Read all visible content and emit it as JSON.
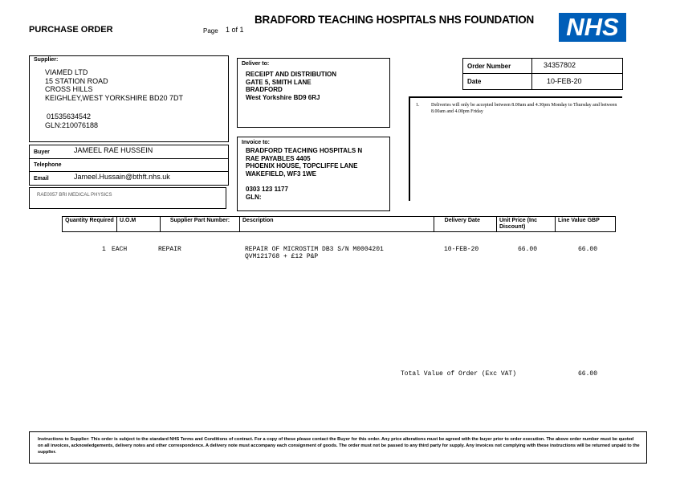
{
  "header": {
    "doc_title": "PURCHASE ORDER",
    "page_label": "Page",
    "page_value": "1 of 1",
    "org_name": "BRADFORD TEACHING HOSPITALS NHS FOUNDATION",
    "logo_text": "NHS",
    "logo_color": "#005EB8"
  },
  "supplier": {
    "label": "Supplier:",
    "lines": [
      "VIAMED LTD",
      "15 STATION ROAD",
      "CROSS HILLS",
      "KEIGHLEY,WEST YORKSHIRE BD20 7DT"
    ],
    "phone": "01535634542",
    "gln": "GLN:210076188"
  },
  "buyer": {
    "buyer_label": "Buyer",
    "buyer_value": "JAMEEL RAE HUSSEIN",
    "telephone_label": "Telephone",
    "telephone_value": "",
    "email_label": "Email",
    "email_value": "Jameel.Hussain@bthft.nhs.uk"
  },
  "department": "RAE0057 BRI MEDICAL PHYSICS",
  "deliver_to": {
    "label": "Deliver to:",
    "lines": [
      "RECEIPT AND DISTRIBUTION",
      "GATE 5, SMITH LANE",
      "BRADFORD",
      "West Yorkshire BD9 6RJ"
    ]
  },
  "invoice_to": {
    "label": "Invoice to:",
    "lines": [
      "BRADFORD TEACHING HOSPITALS N",
      "RAE PAYABLES 4405",
      "PHOENIX HOUSE, TOPCLIFFE LANE",
      "WAKEFIELD, WF3 1WE"
    ],
    "phone": "0303 123 1177",
    "gln": "GLN:"
  },
  "order": {
    "number_label": "Order Number",
    "number_value": "34357802",
    "date_label": "Date",
    "date_value": "10-FEB-20"
  },
  "notes": [
    {
      "num": "1.",
      "text": "Deliveries will only be accepted between 8.00am and 4.30pm Monday to Thursday and between 8.00am and 4.00pm Friday"
    }
  ],
  "table": {
    "headers": [
      "Quantity Required",
      "U.O.M",
      "Supplier Part Number:",
      "Description",
      "Delivery Date",
      "Unit Price (Inc Discount)",
      "Line Value GBP"
    ],
    "rows": [
      {
        "qty": "1",
        "uom": "EACH",
        "part": "REPAIR",
        "desc1": "REPAIR OF MICROSTIM DB3 S/N M0004201",
        "desc2": "QVM121768 + £12 P&P",
        "date": "10-FEB-20",
        "unit": "66.00",
        "value": "66.00"
      }
    ]
  },
  "total": {
    "label": "Total Value of Order (Exc VAT)",
    "value": "66.00"
  },
  "instructions": "Instructions to Supplier: This order is subject to the standard NHS Terms and Conditions of contract. For a copy of these please contact the Buyer for this order. Any price alterations must be agreed with the buyer prior to order execution. The above order number must be quoted on all invoices, acknowledgements, delivery notes and other correspondence. A delivery note must accompany each consignment of goods. The order must not be passed to any third party for supply. Any invoices not complying with these instructions will be returned unpaid to the supplier."
}
